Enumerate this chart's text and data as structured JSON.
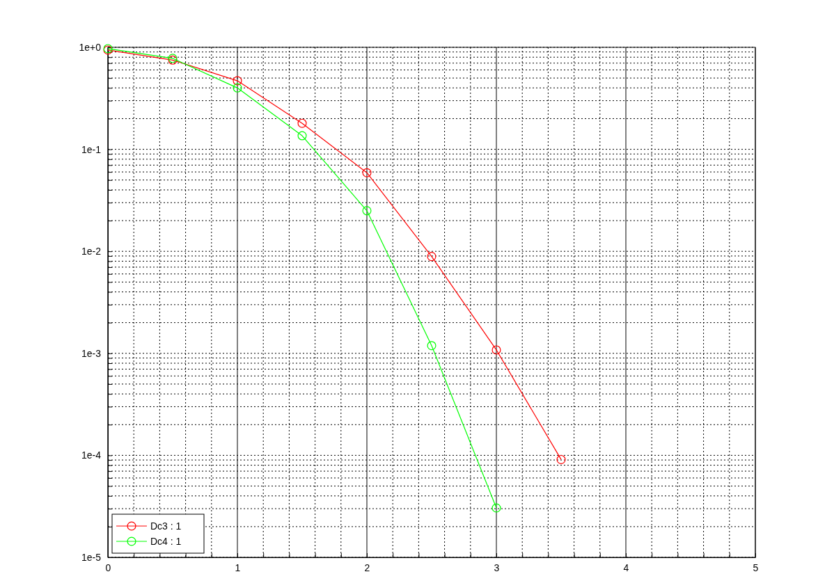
{
  "chart_data": {
    "type": "line",
    "log": "y",
    "grid": true,
    "marker": "circle",
    "line_style": "solid",
    "legend": "bottom left",
    "xlim": [
      0,
      5
    ],
    "xticks": [
      0,
      {
        "value": 0.2,
        "label": null
      },
      {
        "value": 0.4,
        "label": null
      },
      {
        "value": 0.6,
        "label": null
      },
      {
        "value": 0.8,
        "label": null
      },
      1,
      {
        "value": 1.2,
        "label": null
      },
      {
        "value": 1.4,
        "label": null
      },
      {
        "value": 1.6,
        "label": null
      },
      {
        "value": 1.8,
        "label": null
      },
      2,
      {
        "value": 2.2,
        "label": null
      },
      {
        "value": 2.4,
        "label": null
      },
      {
        "value": 2.6,
        "label": null
      },
      {
        "value": 2.8,
        "label": null
      },
      3,
      {
        "value": 3.2,
        "label": null
      },
      {
        "value": 3.4,
        "label": null
      },
      {
        "value": 3.6,
        "label": null
      },
      {
        "value": 3.8,
        "label": null
      },
      4,
      {
        "value": 4.2,
        "label": null
      },
      {
        "value": 4.4,
        "label": null
      },
      {
        "value": 4.6,
        "label": null
      },
      {
        "value": 4.8,
        "label": null
      },
      5
    ],
    "ylim": [
      1e-05,
      1
    ],
    "yticks": [
      {
        "value": 1e-05,
        "label": "1e-5"
      },
      {
        "value": 2e-05,
        "label": null
      },
      {
        "value": 3e-05,
        "label": null
      },
      {
        "value": 4e-05,
        "label": null
      },
      {
        "value": 5e-05,
        "label": null
      },
      {
        "value": 6e-05,
        "label": null
      },
      {
        "value": 7e-05,
        "label": null
      },
      {
        "value": 8e-05,
        "label": null
      },
      {
        "value": 9e-05,
        "label": null
      },
      {
        "value": 0.0001,
        "label": "1e-4"
      },
      {
        "value": 0.0002,
        "label": null
      },
      {
        "value": 0.0003,
        "label": null
      },
      {
        "value": 0.0004,
        "label": null
      },
      {
        "value": 0.0005,
        "label": null
      },
      {
        "value": 0.0006,
        "label": null
      },
      {
        "value": 0.0007,
        "label": null
      },
      {
        "value": 0.0008,
        "label": null
      },
      {
        "value": 0.0009,
        "label": null
      },
      {
        "value": 0.001,
        "label": "1e-3"
      },
      {
        "value": 0.002,
        "label": null
      },
      {
        "value": 0.003,
        "label": null
      },
      {
        "value": 0.004,
        "label": null
      },
      {
        "value": 0.005,
        "label": null
      },
      {
        "value": 0.006,
        "label": null
      },
      {
        "value": 0.007,
        "label": null
      },
      {
        "value": 0.008,
        "label": null
      },
      {
        "value": 0.009,
        "label": null
      },
      {
        "value": 0.01,
        "label": "1e-2"
      },
      {
        "value": 0.02,
        "label": null
      },
      {
        "value": 0.03,
        "label": null
      },
      {
        "value": 0.04,
        "label": null
      },
      {
        "value": 0.05,
        "label": null
      },
      {
        "value": 0.06,
        "label": null
      },
      {
        "value": 0.07,
        "label": null
      },
      {
        "value": 0.08,
        "label": null
      },
      {
        "value": 0.09,
        "label": null
      },
      {
        "value": 0.1,
        "label": "1e-1"
      },
      {
        "value": 0.2,
        "label": null
      },
      {
        "value": 0.3,
        "label": null
      },
      {
        "value": 0.4,
        "label": null
      },
      {
        "value": 0.5,
        "label": null
      },
      {
        "value": 0.6,
        "label": null
      },
      {
        "value": 0.7,
        "label": null
      },
      {
        "value": 0.8,
        "label": null
      },
      {
        "value": 0.9,
        "label": null
      },
      {
        "value": 1,
        "label": "1e+0"
      }
    ],
    "series": [
      {
        "name": "Dc3 : 1",
        "color": "#ff0000",
        "x": [
          0,
          0.5,
          1,
          1.5,
          2,
          2.5,
          3,
          3.5
        ],
        "values": [
          0.94,
          0.75,
          0.47,
          0.18,
          0.059,
          0.0089,
          0.00108,
          9.1e-05
        ]
      },
      {
        "name": "Dc4 : 1",
        "color": "#00ff00",
        "x": [
          0,
          0.5,
          1,
          1.5,
          2,
          2.5,
          3
        ],
        "values": [
          0.97,
          0.78,
          0.4,
          0.136,
          0.025,
          0.00119,
          3.05e-05
        ]
      }
    ]
  }
}
